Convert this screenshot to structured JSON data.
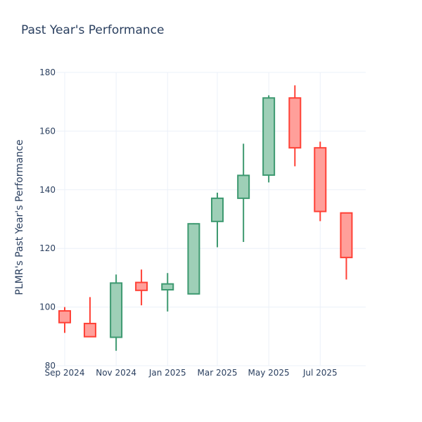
{
  "chart_data": {
    "type": "candlestick",
    "title": "Past Year's Performance",
    "xlabel": "",
    "ylabel": "PLMR's Past Year's Performance",
    "ylim": [
      80,
      180
    ],
    "y_ticks": [
      80,
      100,
      120,
      140,
      160,
      180
    ],
    "x_range": [
      "2024-08-22",
      "2025-08-24"
    ],
    "x_ticks": [
      {
        "date": "2024-09-01",
        "label": "Sep 2024"
      },
      {
        "date": "2024-11-01",
        "label": "Nov 2024"
      },
      {
        "date": "2025-01-01",
        "label": "Jan 2025"
      },
      {
        "date": "2025-03-01",
        "label": "Mar 2025"
      },
      {
        "date": "2025-05-01",
        "label": "May 2025"
      },
      {
        "date": "2025-07-01",
        "label": "Jul 2025"
      }
    ],
    "increasing_color": "#3d9970",
    "increasing_fill": "#9ecfb7",
    "decreasing_color": "#ff4136",
    "decreasing_fill": "#ff9f9a",
    "grid": true,
    "candles": [
      {
        "date": "2024-09-01",
        "open": 98.7,
        "high": 100.0,
        "low": 91.2,
        "close": 94.7
      },
      {
        "date": "2024-10-01",
        "open": 94.4,
        "high": 103.4,
        "low": 89.9,
        "close": 89.9
      },
      {
        "date": "2024-11-01",
        "open": 89.7,
        "high": 111.1,
        "low": 85.1,
        "close": 108.2
      },
      {
        "date": "2024-12-01",
        "open": 108.4,
        "high": 112.8,
        "low": 100.6,
        "close": 105.7
      },
      {
        "date": "2025-01-01",
        "open": 105.9,
        "high": 111.6,
        "low": 98.5,
        "close": 107.9
      },
      {
        "date": "2025-02-01",
        "open": 104.5,
        "high": 128.6,
        "low": 104.5,
        "close": 128.4
      },
      {
        "date": "2025-03-01",
        "open": 129.2,
        "high": 139.0,
        "low": 120.4,
        "close": 137.1
      },
      {
        "date": "2025-04-01",
        "open": 137.1,
        "high": 155.7,
        "low": 122.2,
        "close": 144.9
      },
      {
        "date": "2025-05-01",
        "open": 145.0,
        "high": 172.2,
        "low": 142.5,
        "close": 171.3
      },
      {
        "date": "2025-06-01",
        "open": 171.3,
        "high": 175.6,
        "low": 148.0,
        "close": 154.3
      },
      {
        "date": "2025-07-01",
        "open": 154.3,
        "high": 156.4,
        "low": 129.3,
        "close": 132.6
      },
      {
        "date": "2025-08-01",
        "open": 132.1,
        "high": 132.1,
        "low": 109.4,
        "close": 116.9
      }
    ]
  }
}
